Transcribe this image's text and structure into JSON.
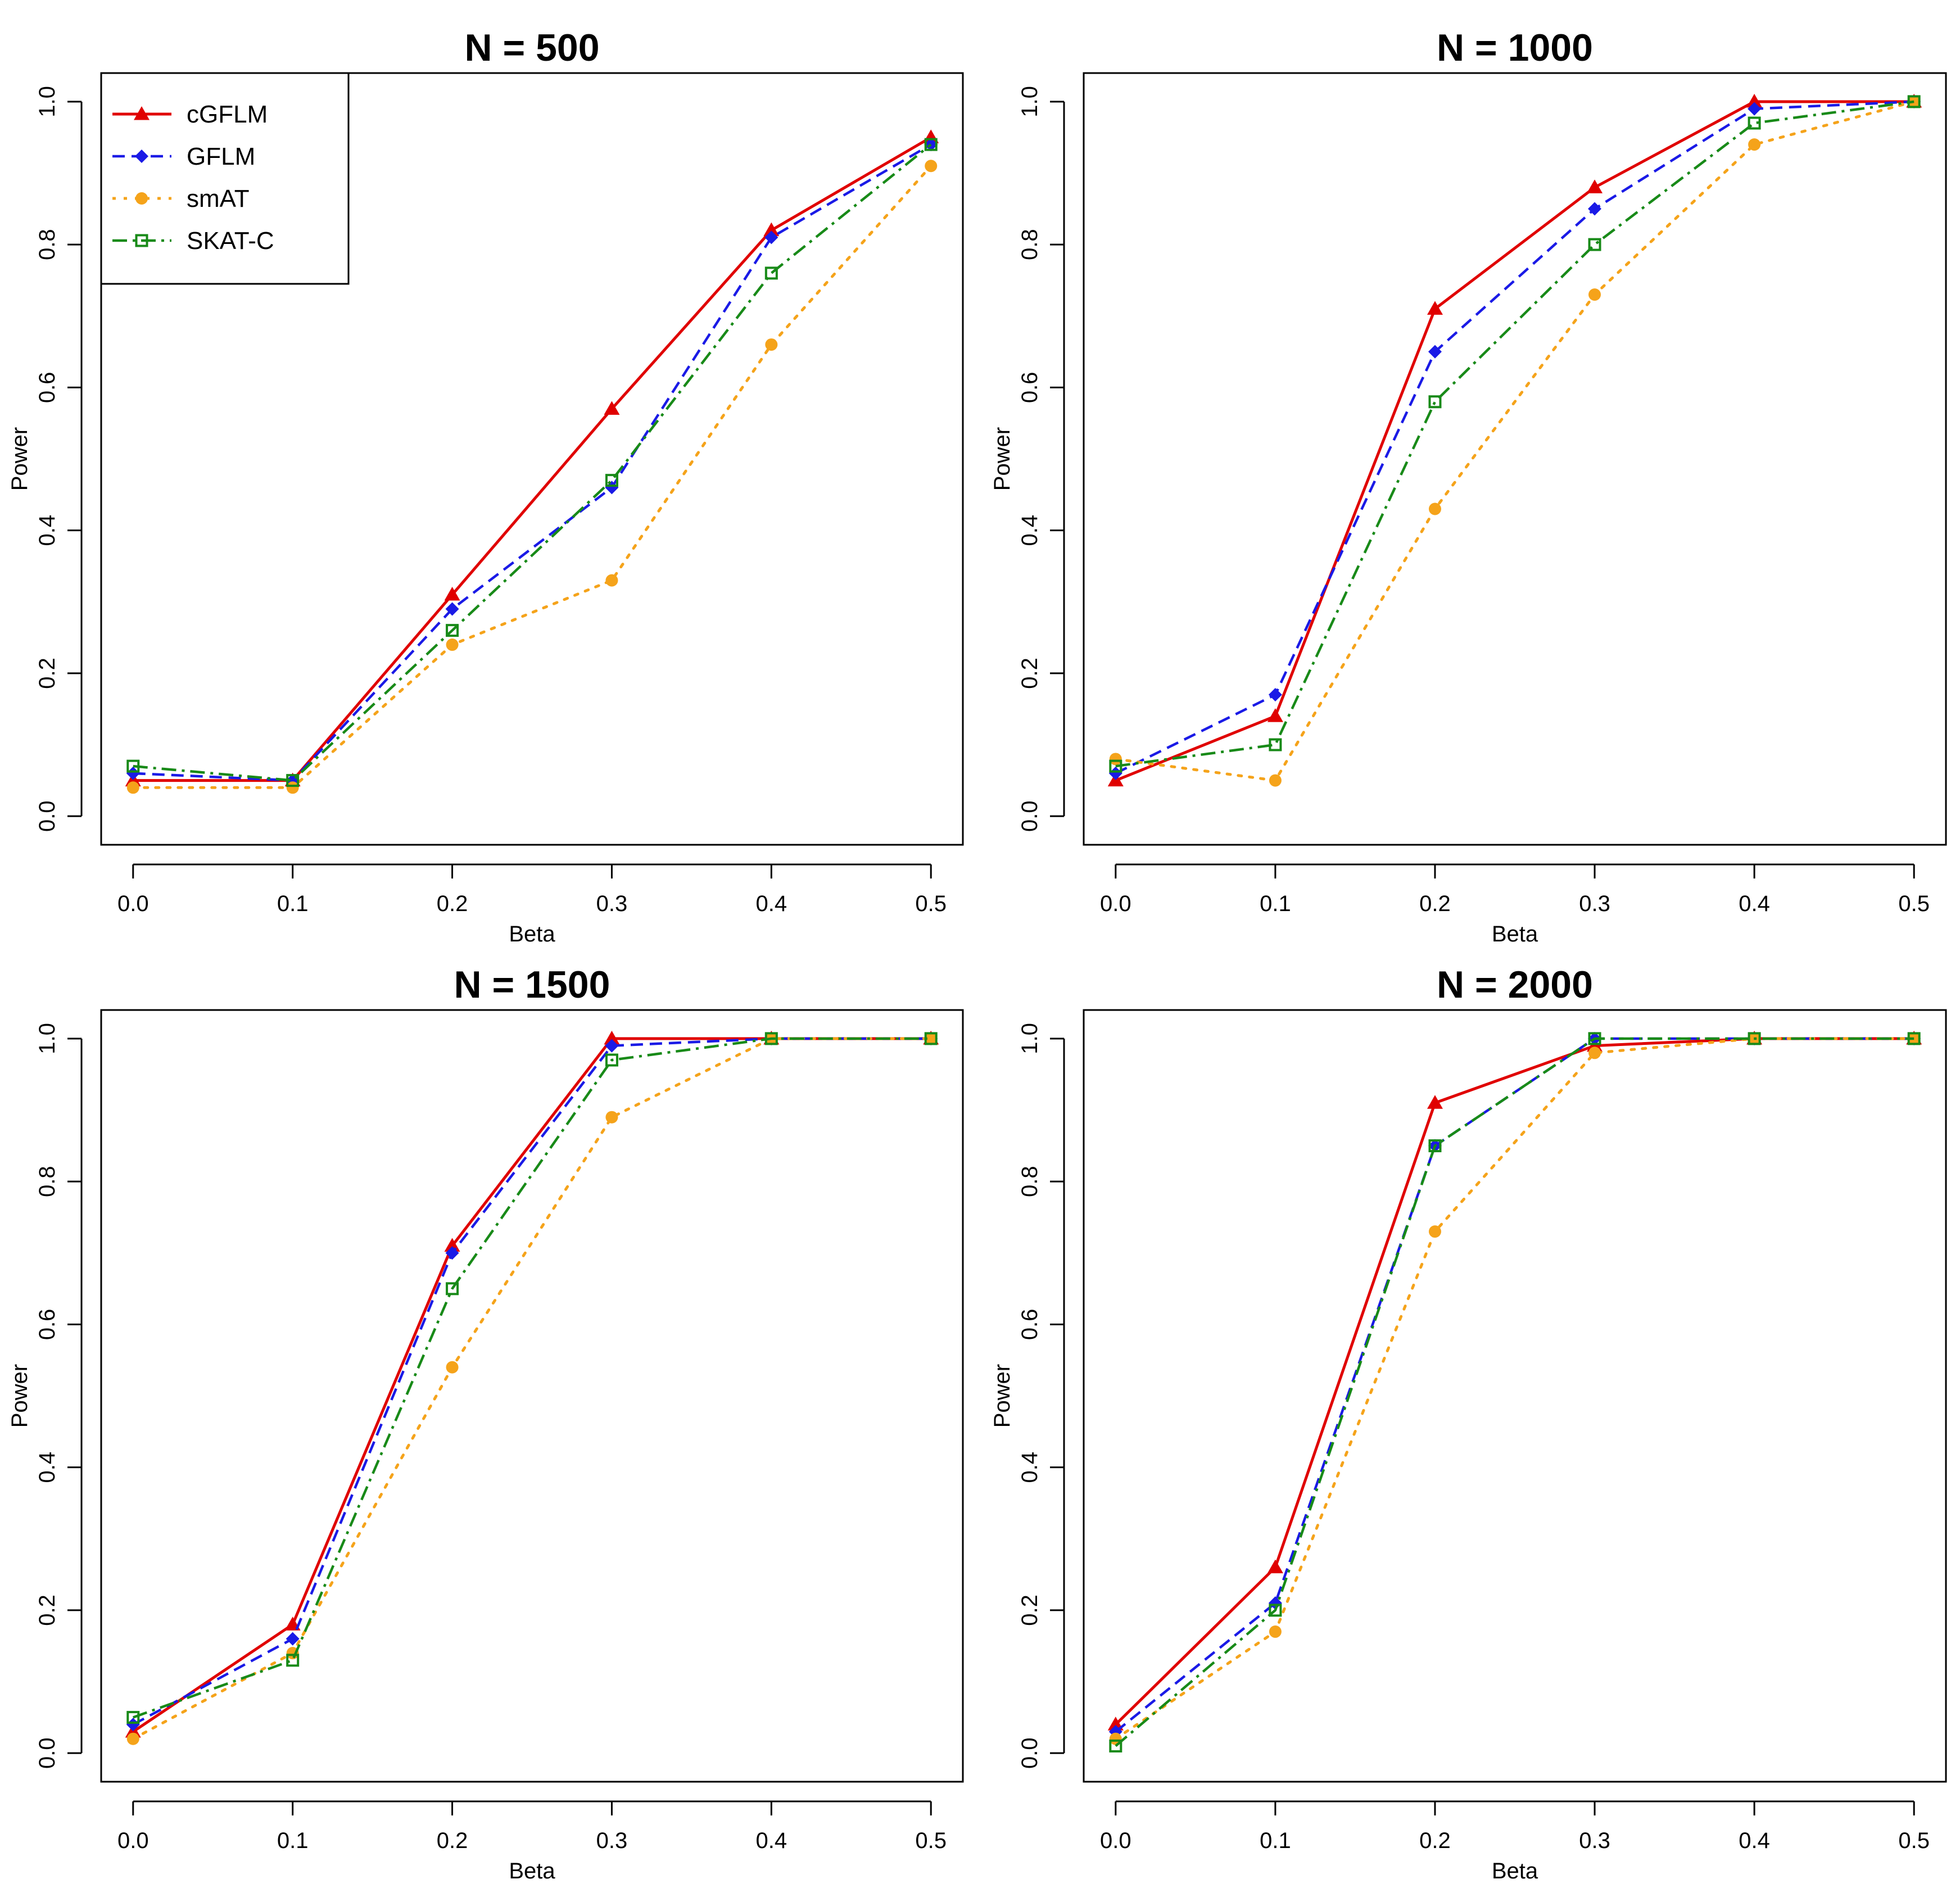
{
  "colors": {
    "cGFLM": "#e00000",
    "GFLM": "#1a1ae6",
    "smAT": "#f5a31a",
    "SKAT-C": "#188a18"
  },
  "legend": {
    "position": "top-left of first panel",
    "entries": [
      {
        "name": "cGFLM",
        "marker": "filled-triangle-icon",
        "line": "solid"
      },
      {
        "name": "GFLM",
        "marker": "filled-diamond-icon",
        "line": "dashed"
      },
      {
        "name": "smAT",
        "marker": "filled-circle-icon",
        "line": "dotted"
      },
      {
        "name": "SKAT-C",
        "marker": "open-square-icon",
        "line": "dash-dot"
      }
    ]
  },
  "chart_data": [
    {
      "type": "line",
      "title": "N = 500",
      "xlabel": "Beta",
      "ylabel": "Power",
      "x": [
        0.0,
        0.1,
        0.2,
        0.3,
        0.4,
        0.5
      ],
      "x_tick_labels": [
        "0.0",
        "0.1",
        "0.2",
        "0.3",
        "0.4",
        "0.5"
      ],
      "y_tick_labels": [
        "0.0",
        "0.2",
        "0.4",
        "0.6",
        "0.8",
        "1.0"
      ],
      "xlim": [
        -0.02,
        0.52
      ],
      "ylim": [
        -0.04,
        1.04
      ],
      "has_legend": true,
      "series": [
        {
          "name": "cGFLM",
          "values": [
            0.05,
            0.05,
            0.31,
            0.57,
            0.82,
            0.95
          ]
        },
        {
          "name": "GFLM",
          "values": [
            0.06,
            0.05,
            0.29,
            0.46,
            0.81,
            0.94
          ]
        },
        {
          "name": "smAT",
          "values": [
            0.04,
            0.04,
            0.24,
            0.33,
            0.66,
            0.91
          ]
        },
        {
          "name": "SKAT-C",
          "values": [
            0.07,
            0.05,
            0.26,
            0.47,
            0.76,
            0.94
          ]
        }
      ]
    },
    {
      "type": "line",
      "title": "N = 1000",
      "xlabel": "Beta",
      "ylabel": "Power",
      "x": [
        0.0,
        0.1,
        0.2,
        0.3,
        0.4,
        0.5
      ],
      "x_tick_labels": [
        "0.0",
        "0.1",
        "0.2",
        "0.3",
        "0.4",
        "0.5"
      ],
      "y_tick_labels": [
        "0.0",
        "0.2",
        "0.4",
        "0.6",
        "0.8",
        "1.0"
      ],
      "xlim": [
        -0.02,
        0.52
      ],
      "ylim": [
        -0.04,
        1.04
      ],
      "has_legend": false,
      "series": [
        {
          "name": "cGFLM",
          "values": [
            0.05,
            0.14,
            0.71,
            0.88,
            1.0,
            1.0
          ]
        },
        {
          "name": "GFLM",
          "values": [
            0.06,
            0.17,
            0.65,
            0.85,
            0.99,
            1.0
          ]
        },
        {
          "name": "smAT",
          "values": [
            0.08,
            0.05,
            0.43,
            0.73,
            0.94,
            1.0
          ]
        },
        {
          "name": "SKAT-C",
          "values": [
            0.07,
            0.1,
            0.58,
            0.8,
            0.97,
            1.0
          ]
        }
      ]
    },
    {
      "type": "line",
      "title": "N = 1500",
      "xlabel": "Beta",
      "ylabel": "Power",
      "x": [
        0.0,
        0.1,
        0.2,
        0.3,
        0.4,
        0.5
      ],
      "x_tick_labels": [
        "0.0",
        "0.1",
        "0.2",
        "0.3",
        "0.4",
        "0.5"
      ],
      "y_tick_labels": [
        "0.0",
        "0.2",
        "0.4",
        "0.6",
        "0.8",
        "1.0"
      ],
      "xlim": [
        -0.02,
        0.52
      ],
      "ylim": [
        -0.04,
        1.04
      ],
      "has_legend": false,
      "series": [
        {
          "name": "cGFLM",
          "values": [
            0.03,
            0.18,
            0.71,
            1.0,
            1.0,
            1.0
          ]
        },
        {
          "name": "GFLM",
          "values": [
            0.04,
            0.16,
            0.7,
            0.99,
            1.0,
            1.0
          ]
        },
        {
          "name": "smAT",
          "values": [
            0.02,
            0.14,
            0.54,
            0.89,
            1.0,
            1.0
          ]
        },
        {
          "name": "SKAT-C",
          "values": [
            0.05,
            0.13,
            0.65,
            0.97,
            1.0,
            1.0
          ]
        }
      ]
    },
    {
      "type": "line",
      "title": "N = 2000",
      "xlabel": "Beta",
      "ylabel": "Power",
      "x": [
        0.0,
        0.1,
        0.2,
        0.3,
        0.4,
        0.5
      ],
      "x_tick_labels": [
        "0.0",
        "0.1",
        "0.2",
        "0.3",
        "0.4",
        "0.5"
      ],
      "y_tick_labels": [
        "0.0",
        "0.2",
        "0.4",
        "0.6",
        "0.8",
        "1.0"
      ],
      "xlim": [
        -0.02,
        0.52
      ],
      "ylim": [
        -0.04,
        1.04
      ],
      "has_legend": false,
      "series": [
        {
          "name": "cGFLM",
          "values": [
            0.04,
            0.26,
            0.91,
            0.99,
            1.0,
            1.0
          ]
        },
        {
          "name": "GFLM",
          "values": [
            0.03,
            0.21,
            0.85,
            1.0,
            1.0,
            1.0
          ]
        },
        {
          "name": "smAT",
          "values": [
            0.02,
            0.17,
            0.73,
            0.98,
            1.0,
            1.0
          ]
        },
        {
          "name": "SKAT-C",
          "values": [
            0.01,
            0.2,
            0.85,
            1.0,
            1.0,
            1.0
          ]
        }
      ]
    }
  ]
}
